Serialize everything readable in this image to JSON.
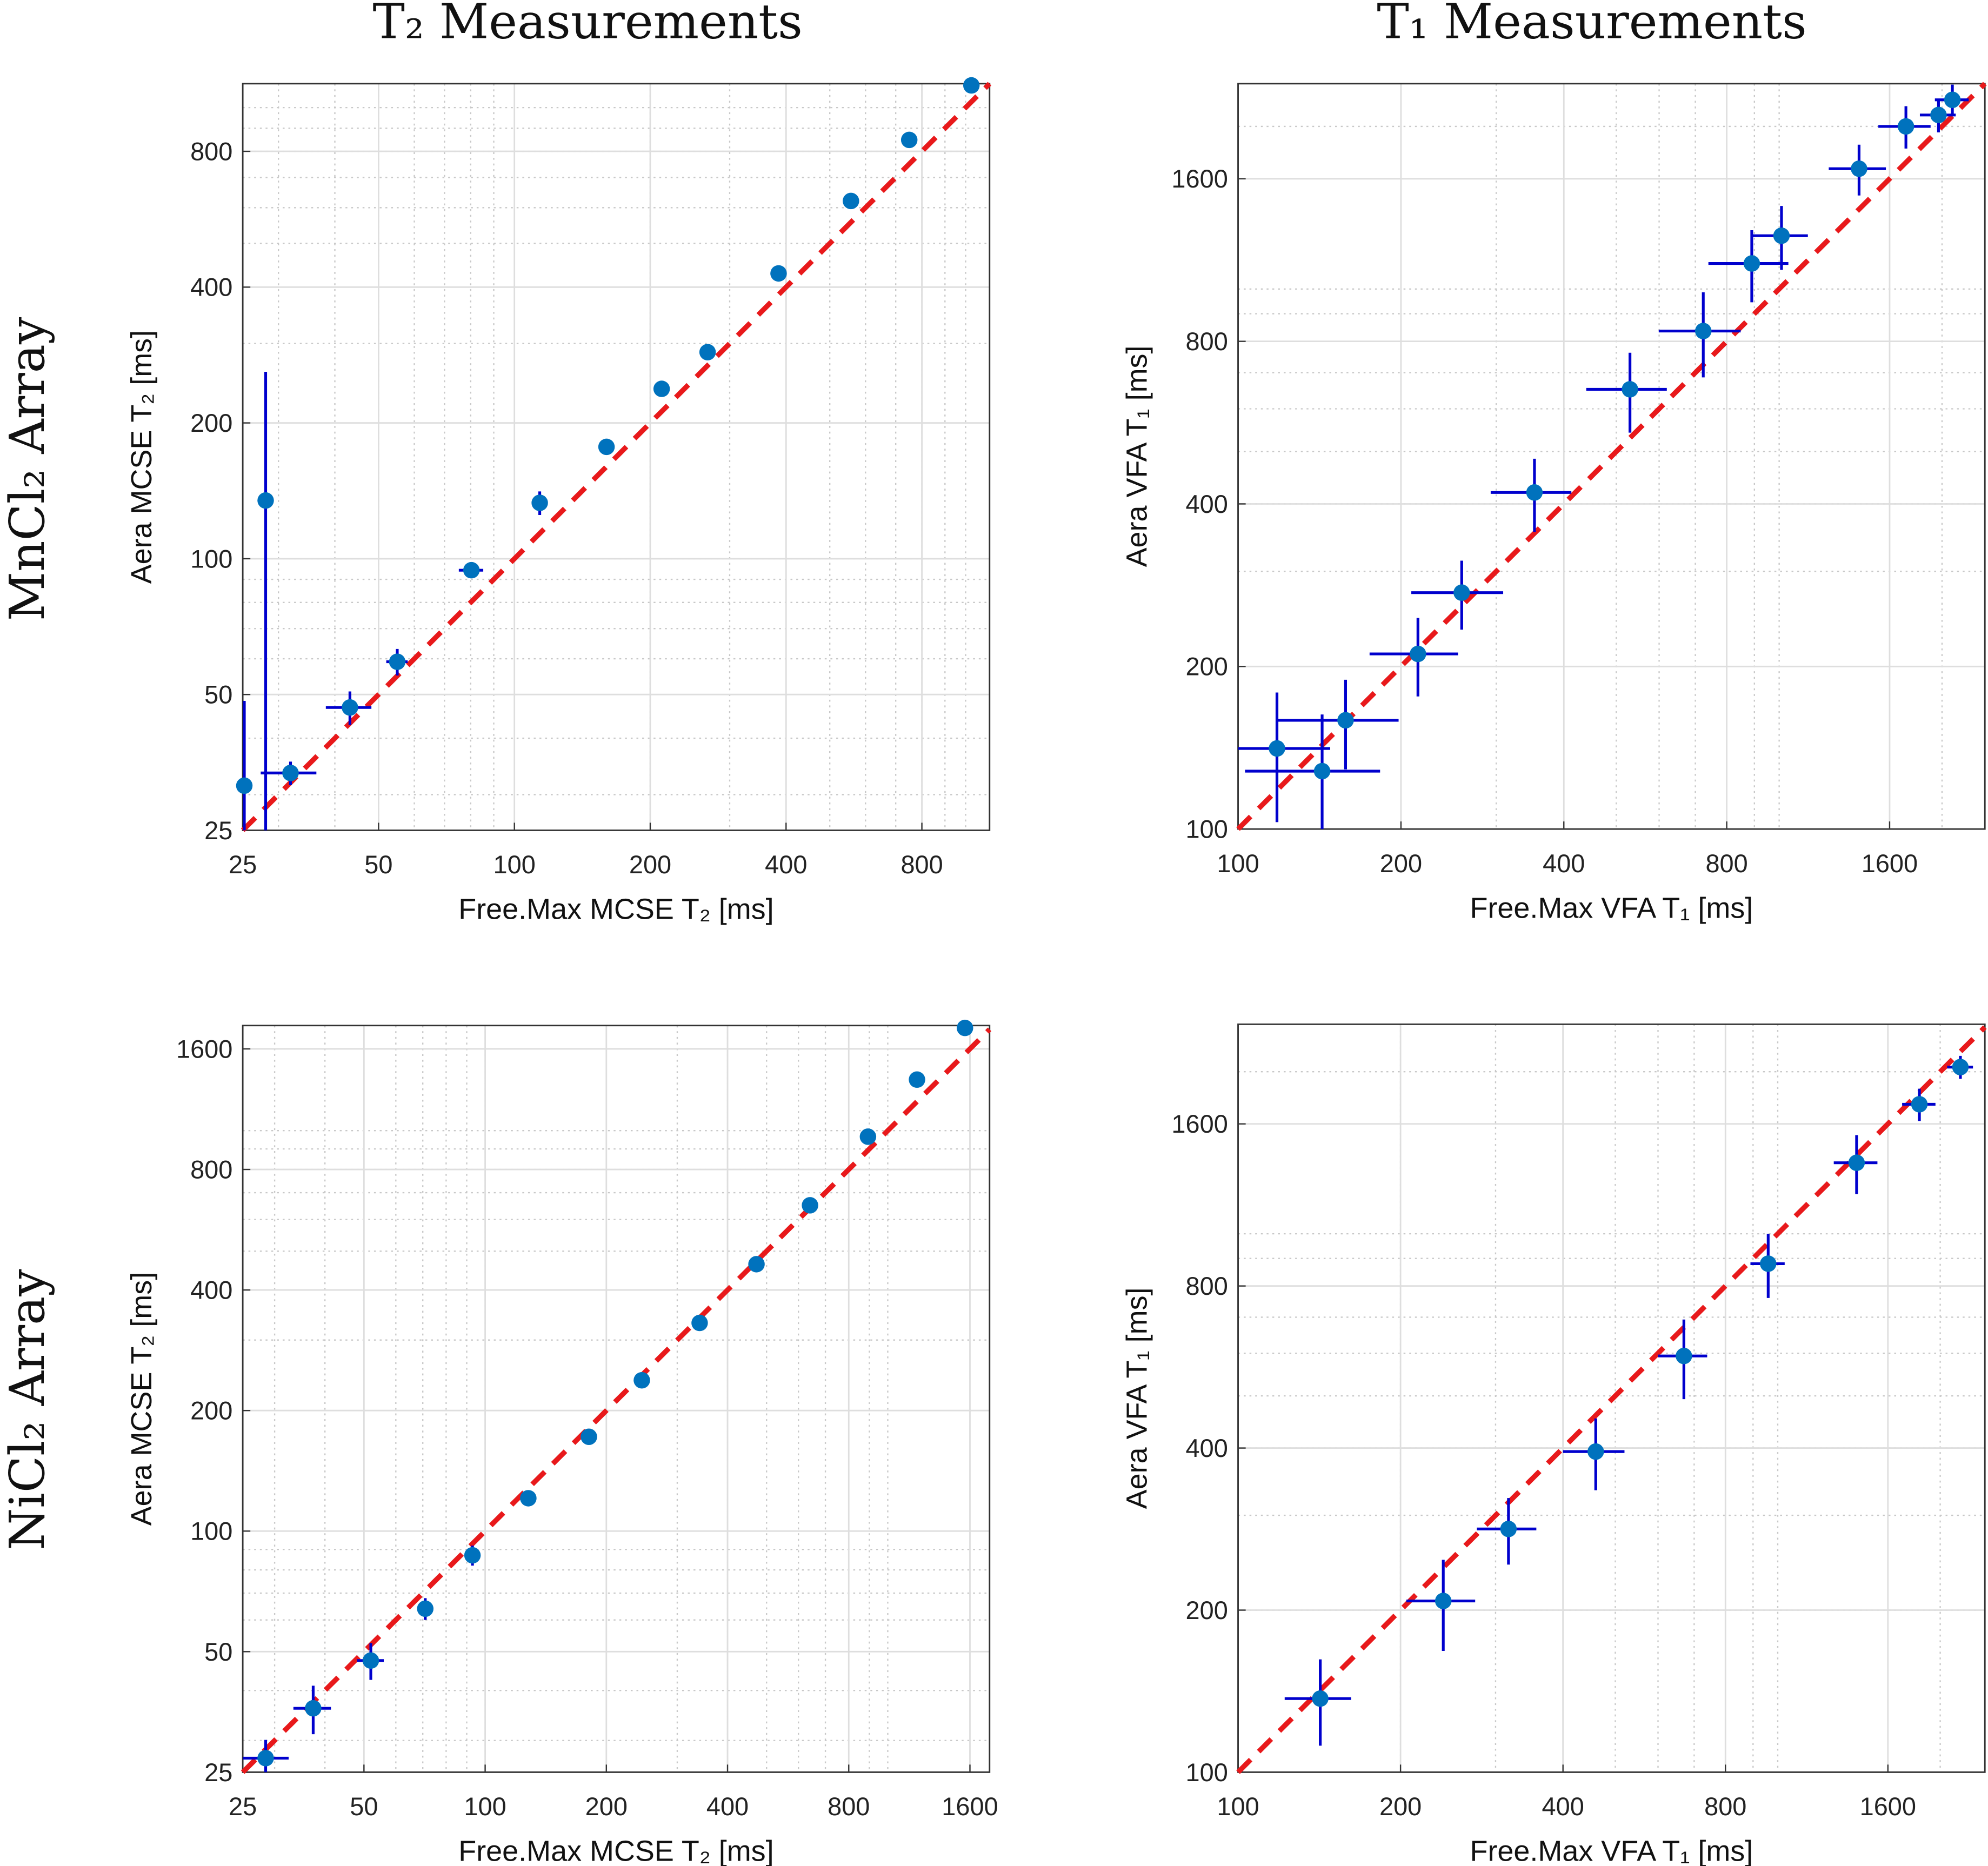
{
  "column_titles": [
    "T₂ Measurements",
    "T₁ Measurements"
  ],
  "row_labels": [
    "MnCl₂ Array",
    "NiCl₂ Array"
  ],
  "chart_data": [
    {
      "type": "scatter",
      "xlabel": "Free.Max MCSE T₂ [ms]",
      "ylabel": "Aera MCSE T₂ [ms]",
      "log_scale": true,
      "grid": true,
      "xlim": [
        25,
        1130
      ],
      "ylim": [
        25,
        1130
      ],
      "xticks": [
        25,
        50,
        100,
        200,
        400,
        800
      ],
      "yticks": [
        25,
        50,
        100,
        200,
        400,
        800
      ],
      "identity_line_color": "#e8191b",
      "error_color": "#0000cd",
      "series": [
        {
          "color": "#0072bd",
          "x": [
            25.2,
            28.1,
            31.9,
            43.2,
            55,
            80.3,
            113.8,
            160,
            212,
            268,
            385,
            557,
            750,
            1030
          ],
          "values": [
            31.4,
            134.6,
            33.5,
            46.8,
            59.1,
            94.3,
            133,
            177,
            238,
            287,
            429,
            621,
            848,
            1120
          ],
          "xerr": [
            0,
            0,
            4.5,
            5,
            3,
            5,
            3,
            5,
            3,
            3,
            5,
            5,
            5,
            5
          ],
          "yerr": [
            17,
            125,
            2,
            4,
            4,
            3,
            8,
            5,
            3,
            3,
            5,
            5,
            5,
            5
          ]
        }
      ]
    },
    {
      "type": "scatter",
      "xlabel": "Free.Max VFA T₁ [ms]",
      "ylabel": "Aera VFA T₁ [ms]",
      "log_scale": true,
      "grid": true,
      "xlim": [
        100,
        2400
      ],
      "ylim": [
        100,
        2400
      ],
      "xticks": [
        100,
        200,
        400,
        800,
        1600
      ],
      "yticks": [
        100,
        200,
        400,
        800,
        1600
      ],
      "identity_line_color": "#e8191b",
      "error_color": "#0000cd",
      "series": [
        {
          "color": "#0072bd",
          "x": [
            118,
            143,
            158,
            215,
            259,
            353,
            530,
            724,
            890,
            1010,
            1405,
            1715,
            1970,
            2090
          ],
          "values": [
            141,
            128,
            159,
            211,
            274,
            420,
            652,
            836,
            1115,
            1255,
            1670,
            2000,
            2100,
            2240
          ],
          "xerr": [
            30,
            40,
            40,
            40,
            50,
            60,
            90,
            125,
            150,
            120,
            170,
            190,
            150,
            150
          ],
          "yerr": [
            38,
            35,
            30,
            35,
            40,
            65,
            110,
            150,
            170,
            170,
            180,
            180,
            150,
            150
          ]
        }
      ]
    },
    {
      "type": "scatter",
      "xlabel": "Free.Max MCSE T₂ [ms]",
      "ylabel": "Aera MCSE T₂ [ms]",
      "log_scale": true,
      "grid": true,
      "xlim": [
        25,
        1790
      ],
      "ylim": [
        25,
        1830
      ],
      "xticks": [
        25,
        50,
        100,
        200,
        400,
        800,
        1600
      ],
      "yticks": [
        25,
        50,
        100,
        200,
        400,
        800,
        1600
      ],
      "identity_line_color": "#e8191b",
      "error_color": "#0000cd",
      "series": [
        {
          "color": "#0072bd",
          "x": [
            28.5,
            37.4,
            52,
            71,
            93,
            128,
            181,
            245,
            341,
            472,
            641,
            893,
            1182,
            1555
          ],
          "values": [
            27.1,
            36.1,
            47.5,
            64,
            87,
            120.8,
            172,
            238,
            331,
            464,
            651,
            966,
            1341,
            1805
          ],
          "xerr": [
            4,
            4,
            4,
            3,
            3,
            2,
            2,
            3,
            3,
            5,
            5,
            5,
            5,
            5
          ],
          "yerr": [
            3,
            5,
            5,
            4,
            5,
            2,
            2,
            3,
            3,
            5,
            5,
            5,
            5,
            5
          ]
        }
      ]
    },
    {
      "type": "scatter",
      "xlabel": "Free.Max VFA T₁ [ms]",
      "ylabel": "Aera VFA T₁ [ms]",
      "log_scale": true,
      "grid": true,
      "xlim": [
        100,
        2420
      ],
      "ylim": [
        100,
        2450
      ],
      "xticks": [
        100,
        200,
        400,
        800,
        1600
      ],
      "yticks": [
        100,
        200,
        400,
        800,
        1600
      ],
      "identity_line_color": "#e8191b",
      "error_color": "#0000cd",
      "series": [
        {
          "color": "#0072bd",
          "x": [
            142,
            240,
            317,
            460,
            670,
            960,
            1400,
            1830,
            2180
          ],
          "values": [
            137,
            208,
            283,
            394,
            593,
            880,
            1355,
            1740,
            2040
          ],
          "xerr": [
            20,
            35,
            40,
            60,
            70,
            70,
            130,
            130,
            120
          ],
          "yerr": [
            25,
            40,
            40,
            60,
            100,
            120,
            170,
            120,
            100
          ]
        }
      ]
    }
  ]
}
